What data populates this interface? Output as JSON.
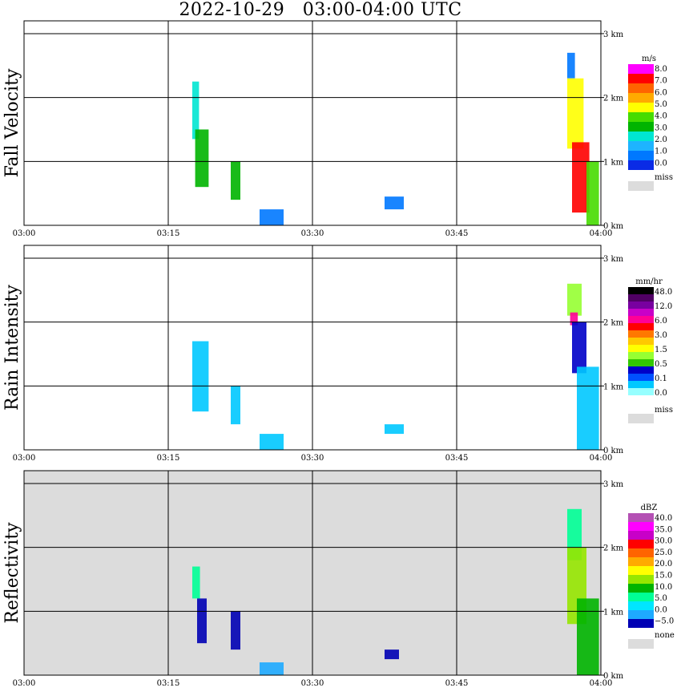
{
  "title": "2022-10-29   03:00-04:00 UTC",
  "x_ticks": [
    "03:00",
    "03:15",
    "03:30",
    "03:45",
    "04:00"
  ],
  "colors": {
    "grid": "#000000",
    "missing": "#dcdcdc",
    "velocity_scale": [
      "#0a2be6",
      "#0078ff",
      "#1eb4ff",
      "#00e6d2",
      "#00b400",
      "#46dc00",
      "#ffff00",
      "#ffaa00",
      "#ff6400",
      "#ff0000",
      "#ff00ff"
    ],
    "rain_scale": [
      "#ffffff",
      "#96ffff",
      "#00c8ff",
      "#0050ff",
      "#0000c8",
      "#32c800",
      "#96ff32",
      "#ffff00",
      "#ffc800",
      "#ff7800",
      "#ff0000",
      "#ff0096",
      "#c800c8",
      "#7800a0",
      "#500064",
      "#000000"
    ],
    "refl_scale": [
      "#0000b4",
      "#1eaaff",
      "#00e6ff",
      "#00ff96",
      "#00b400",
      "#96e600",
      "#ffff00",
      "#ffaa00",
      "#ff6400",
      "#ff0000",
      "#c800c8",
      "#ff00ff",
      "#b450b4"
    ]
  },
  "chart_data": [
    {
      "type": "heatmap",
      "name_label": "Fall Velocity",
      "xlim": [
        "03:00",
        "04:00"
      ],
      "ylim_km": [
        0,
        3.2
      ],
      "y_ticks": [
        "0 km",
        "1 km",
        "2 km",
        "3 km"
      ],
      "colorbar": {
        "unit": "m/s",
        "labels": [
          "8.0",
          "7.0",
          "6.0",
          "5.0",
          "4.0",
          "3.0",
          "2.0",
          "1.0",
          "0.0"
        ],
        "missing_label": "miss"
      },
      "features": [
        {
          "t": [
            17.5,
            18.2
          ],
          "z": [
            1.35,
            2.25
          ],
          "value": 2.0
        },
        {
          "t": [
            17.8,
            19.2
          ],
          "z": [
            0.6,
            1.5
          ],
          "value": 3.0
        },
        {
          "t": [
            21.5,
            22.5
          ],
          "z": [
            0.4,
            1.0
          ],
          "value": 3.0
        },
        {
          "t": [
            24.5,
            27.0
          ],
          "z": [
            0.0,
            0.25
          ],
          "value": 1.5
        },
        {
          "t": [
            37.5,
            39.5
          ],
          "z": [
            0.25,
            0.45
          ],
          "value": 1.5
        },
        {
          "t": [
            56.5,
            57.3
          ],
          "z": [
            2.3,
            2.7
          ],
          "value": 1.0
        },
        {
          "t": [
            56.5,
            58.2
          ],
          "z": [
            1.2,
            2.3
          ],
          "value": 5.0
        },
        {
          "t": [
            57.0,
            58.8
          ],
          "z": [
            0.2,
            1.3
          ],
          "value": 7.0
        },
        {
          "t": [
            58.5,
            59.8
          ],
          "z": [
            0.0,
            1.0
          ],
          "value": 4.0
        }
      ]
    },
    {
      "type": "heatmap",
      "name_label": "Rain Intensity",
      "xlim": [
        "03:00",
        "04:00"
      ],
      "ylim_km": [
        0,
        3.2
      ],
      "y_ticks": [
        "0 km",
        "1 km",
        "2 km",
        "3 km"
      ],
      "colorbar": {
        "unit": "mm/hr",
        "labels": [
          "48.0",
          "12.0",
          "6.0",
          "3.0",
          "1.5",
          "0.5",
          "0.1",
          "0.0"
        ],
        "missing_label": "miss"
      },
      "features": [
        {
          "t": [
            17.5,
            19.2
          ],
          "z": [
            0.6,
            1.7
          ],
          "value": 0.1
        },
        {
          "t": [
            21.5,
            22.5
          ],
          "z": [
            0.4,
            1.0
          ],
          "value": 0.1
        },
        {
          "t": [
            24.5,
            27.0
          ],
          "z": [
            0.0,
            0.25
          ],
          "value": 0.1
        },
        {
          "t": [
            37.5,
            39.5
          ],
          "z": [
            0.25,
            0.4
          ],
          "value": 0.1
        },
        {
          "t": [
            56.5,
            58.0
          ],
          "z": [
            2.1,
            2.6
          ],
          "value": 1.5
        },
        {
          "t": [
            56.8,
            57.6
          ],
          "z": [
            1.95,
            2.15
          ],
          "value": 6.0
        },
        {
          "t": [
            57.0,
            58.5
          ],
          "z": [
            1.2,
            2.0
          ],
          "value": 0.5
        },
        {
          "t": [
            57.5,
            59.8
          ],
          "z": [
            0.0,
            1.3
          ],
          "value": 0.1
        }
      ]
    },
    {
      "type": "heatmap",
      "name_label": "Reflectivity",
      "xlim": [
        "03:00",
        "04:00"
      ],
      "ylim_km": [
        0,
        3.2
      ],
      "y_ticks": [
        "0 km",
        "1 km",
        "2 km",
        "3 km"
      ],
      "colorbar": {
        "unit": "dBZ",
        "labels": [
          "40.0",
          "35.0",
          "30.0",
          "25.0",
          "20.0",
          "15.0",
          "10.0",
          "5.0",
          "0.0",
          "−5.0"
        ],
        "missing_label": "none"
      },
      "features": [
        {
          "t": [
            17.5,
            18.3
          ],
          "z": [
            1.2,
            1.7
          ],
          "value": 5.0
        },
        {
          "t": [
            18.0,
            19.0
          ],
          "z": [
            0.5,
            1.2
          ],
          "value": -5.0
        },
        {
          "t": [
            21.5,
            22.5
          ],
          "z": [
            0.4,
            1.0
          ],
          "value": -5.0
        },
        {
          "t": [
            24.5,
            27.0
          ],
          "z": [
            0.0,
            0.2
          ],
          "value": 0.0
        },
        {
          "t": [
            37.5,
            39.0
          ],
          "z": [
            0.25,
            0.4
          ],
          "value": -5.0
        },
        {
          "t": [
            56.5,
            58.0
          ],
          "z": [
            1.8,
            2.6
          ],
          "value": 5.0
        },
        {
          "t": [
            56.5,
            58.5
          ],
          "z": [
            0.8,
            2.0
          ],
          "value": 15.0
        },
        {
          "t": [
            57.5,
            59.8
          ],
          "z": [
            0.0,
            1.2
          ],
          "value": 10.0
        }
      ]
    }
  ]
}
